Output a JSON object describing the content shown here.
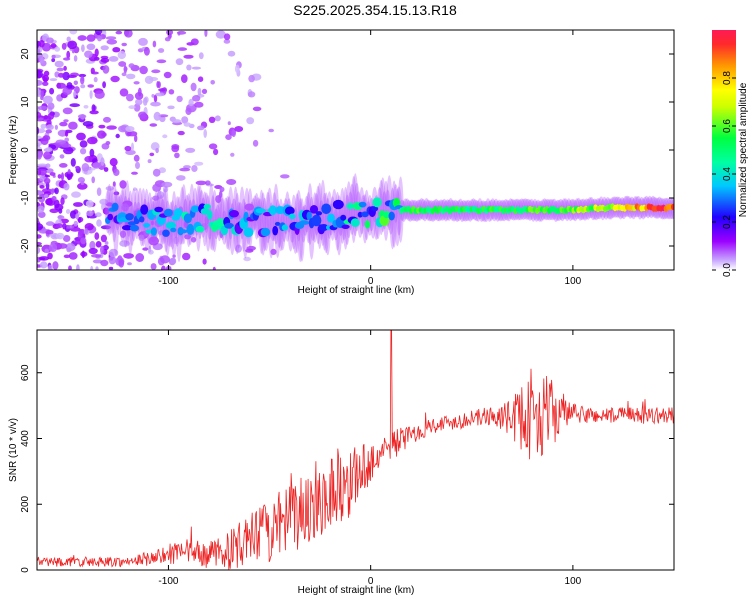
{
  "title": "S225.2025.354.15.13.R18",
  "colors": {
    "snr_line": "#ee2222",
    "frame": "#000000",
    "background": "#ffffff"
  },
  "chart_data": [
    {
      "type": "heatmap",
      "name": "spectrogram",
      "xlabel": "Height of straight line (km)",
      "ylabel": "Frequency (Hz)",
      "xlim": [
        -165,
        150
      ],
      "ylim": [
        -25,
        25
      ],
      "xticks": [
        -100,
        0,
        100
      ],
      "yticks": [
        20,
        10,
        0,
        -10,
        -20
      ],
      "colorbar": {
        "label": "Normalized spectral amplitude",
        "range": [
          0.0,
          1.0
        ],
        "ticks": [
          0.0,
          0.2,
          0.4,
          0.6,
          0.8
        ],
        "colormap": [
          "#9b00ff",
          "#2200ff",
          "#00c8ff",
          "#00ff50",
          "#ffff00",
          "#ff9900",
          "#ff1a55"
        ]
      },
      "ridge": {
        "description_points_x": [
          -125,
          -100,
          -80,
          -60,
          -40,
          -20,
          0,
          20,
          50,
          80,
          100,
          120,
          148
        ],
        "frequency_hz": [
          -14,
          -15,
          -14,
          -15,
          -15,
          -14,
          -13,
          -12.5,
          -12.5,
          -12.5,
          -12.5,
          -12,
          -12
        ],
        "amplitude": [
          0.25,
          0.3,
          0.35,
          0.3,
          0.3,
          0.3,
          0.4,
          0.55,
          0.5,
          0.55,
          0.6,
          0.7,
          0.95
        ]
      }
    },
    {
      "type": "line",
      "name": "snr",
      "xlabel": "Height of straight line (km)",
      "ylabel": "SNR (10 * v/v)",
      "xlim": [
        -165,
        150
      ],
      "ylim": [
        0,
        730
      ],
      "xticks": [
        -100,
        0,
        100
      ],
      "yticks": [
        0,
        200,
        400,
        600
      ],
      "series": [
        {
          "name": "SNR",
          "x": [
            -165,
            -140,
            -120,
            -105,
            -90,
            -80,
            -70,
            -60,
            -50,
            -40,
            -30,
            -20,
            -10,
            0,
            10,
            20,
            30,
            40,
            50,
            60,
            70,
            80,
            90,
            100,
            110,
            120,
            130,
            140,
            150
          ],
          "values": [
            25,
            25,
            25,
            40,
            55,
            45,
            60,
            90,
            120,
            150,
            200,
            240,
            270,
            330,
            380,
            410,
            440,
            450,
            460,
            470,
            460,
            470,
            480,
            475,
            470,
            470,
            470,
            470,
            470
          ],
          "noise_amplitude": [
            15,
            15,
            15,
            25,
            40,
            40,
            60,
            80,
            100,
            110,
            120,
            120,
            110,
            60,
            50,
            30,
            25,
            25,
            25,
            30,
            60,
            150,
            100,
            30,
            25,
            25,
            25,
            25,
            25
          ],
          "spike": {
            "x": 10,
            "value": 730
          }
        }
      ]
    }
  ]
}
